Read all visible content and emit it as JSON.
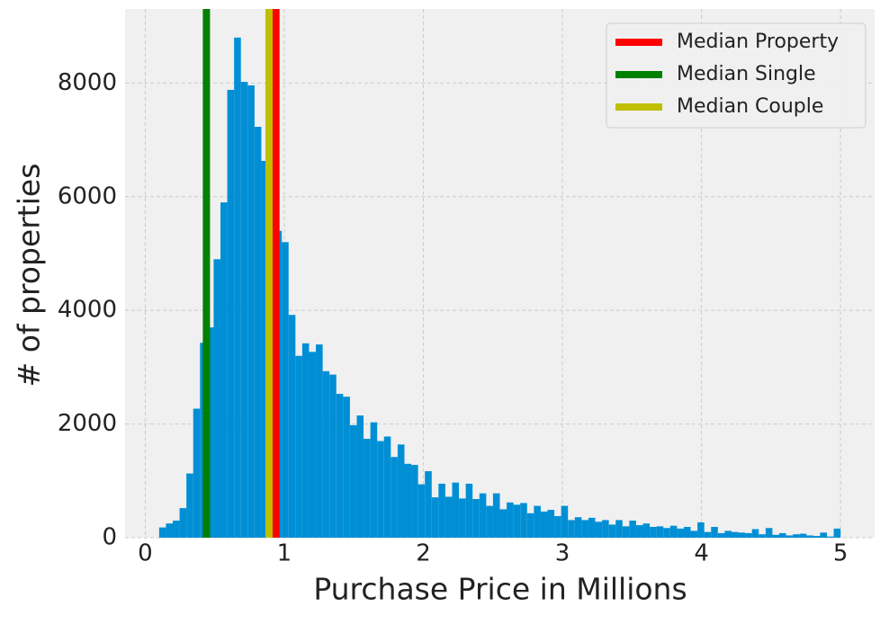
{
  "chart_data": {
    "type": "histogram",
    "xlabel": "Purchase Price in Millions",
    "ylabel": "# of properties",
    "color": "#008fd5",
    "bins": [
      0.1,
      0.149,
      0.198,
      0.247,
      0.296,
      0.345,
      0.394,
      0.443,
      0.492,
      0.541,
      0.59,
      0.639,
      0.688,
      0.737,
      0.786,
      0.835,
      0.884,
      0.933,
      0.982,
      1.031,
      1.08,
      1.129,
      1.178,
      1.227,
      1.276,
      1.325,
      1.374,
      1.423,
      1.472,
      1.521,
      1.57,
      1.619,
      1.668,
      1.717,
      1.766,
      1.815,
      1.864,
      1.913,
      1.962,
      2.011,
      2.06,
      2.109,
      2.158,
      2.207,
      2.256,
      2.305,
      2.354,
      2.403,
      2.452,
      2.501,
      2.55,
      2.599,
      2.648,
      2.697,
      2.746,
      2.795,
      2.844,
      2.893,
      2.942,
      2.991,
      3.04,
      3.089,
      3.138,
      3.187,
      3.236,
      3.285,
      3.334,
      3.383,
      3.432,
      3.481,
      3.53,
      3.579,
      3.628,
      3.677,
      3.726,
      3.775,
      3.824,
      3.873,
      3.922,
      3.971,
      4.02,
      4.069,
      4.118,
      4.167,
      4.216,
      4.265,
      4.314,
      4.363,
      4.412,
      4.461,
      4.51,
      4.559,
      4.608,
      4.657,
      4.706,
      4.755,
      4.804,
      4.853,
      4.902,
      4.951,
      5.0
    ],
    "values": [
      180,
      250,
      300,
      520,
      1130,
      2270,
      3430,
      3700,
      4900,
      5900,
      7880,
      8800,
      8020,
      7960,
      7230,
      6630,
      6000,
      5400,
      5200,
      3920,
      3200,
      3420,
      3270,
      3400,
      2930,
      2870,
      2530,
      2480,
      1980,
      2150,
      1740,
      2030,
      1700,
      1780,
      1420,
      1640,
      1300,
      1280,
      940,
      1170,
      710,
      950,
      720,
      970,
      690,
      950,
      680,
      780,
      560,
      780,
      500,
      620,
      580,
      610,
      430,
      560,
      460,
      490,
      380,
      560,
      310,
      360,
      310,
      350,
      280,
      310,
      230,
      310,
      200,
      300,
      220,
      250,
      190,
      200,
      170,
      210,
      160,
      190,
      120,
      270,
      100,
      190,
      80,
      120,
      100,
      90,
      80,
      150,
      60,
      170,
      50,
      80,
      40,
      60,
      70,
      40,
      30,
      90,
      20,
      160
    ],
    "vlines": [
      {
        "name": "Median Property",
        "color": "#ff0000",
        "x": 0.94
      },
      {
        "name": "Median Single",
        "color": "#008000",
        "x": 0.44
      },
      {
        "name": "Median Couple",
        "color": "#bfbf00",
        "x": 0.89
      }
    ],
    "xlim": [
      -0.145,
      5.245
    ],
    "ylim": [
      0,
      9240
    ],
    "xticks": [
      0,
      1,
      2,
      3,
      4,
      5
    ],
    "yticks": [
      0,
      2000,
      4000,
      6000,
      8000
    ],
    "grid": true,
    "legend": "upper right"
  }
}
